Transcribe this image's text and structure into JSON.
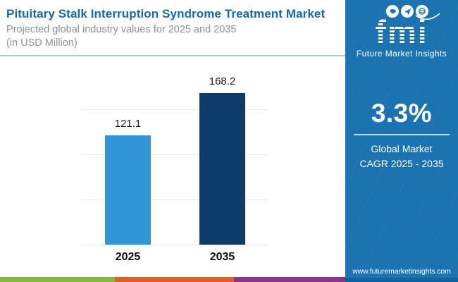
{
  "header": {
    "title": "Pituitary Stalk Interruption Syndrome Treatment Market",
    "subtitle_line1": "Projected global industry values for 2025 and 2035",
    "subtitle_line2": "(in USD Million)"
  },
  "chart_data": {
    "type": "bar",
    "categories": [
      "2025",
      "2035"
    ],
    "values": [
      121.1,
      168.2
    ],
    "value_labels": [
      "121.1",
      "168.2"
    ],
    "title": "Pituitary Stalk Interruption Syndrome Treatment Market",
    "subtitle": "Projected global industry values for 2025 and 2035 (in USD Million)",
    "xlabel": "",
    "ylabel": "",
    "units": "USD Million",
    "ylim": [
      0,
      175
    ],
    "gridline_values": [
      0,
      50,
      100,
      150
    ],
    "grid": "horizontal, unlabeled",
    "legend_position": "none",
    "bar_colors": [
      "#3295d5",
      "#0d3c6c"
    ]
  },
  "sidebar": {
    "logo": {
      "text": "fmi",
      "caption": "Future Market Insights",
      "icons": [
        "map-icon",
        "plane-icon",
        "globe-icon"
      ]
    },
    "cagr_value": "3.3%",
    "cagr_label_line1": "Global Market",
    "cagr_label_line2": "CAGR 2025 - 2035",
    "website": "www.futuremarketinsights.com"
  },
  "colors": {
    "title_blue": "#1569a4",
    "sidebar_blue": "#1b73b2",
    "sidebar_bottom_strip": "#0f61a2",
    "bar_2025": "#3295d5",
    "bar_2035": "#0d3c6c",
    "stripe_green": "#84b93f",
    "stripe_orange": "#e05d29",
    "stripe_purple": "#93308a"
  },
  "footer_stripes": [
    {
      "name": "stripe-green",
      "color": "#84b93f"
    },
    {
      "name": "stripe-orange",
      "color": "#e05d29"
    },
    {
      "name": "stripe-purple",
      "color": "#93308a"
    }
  ]
}
